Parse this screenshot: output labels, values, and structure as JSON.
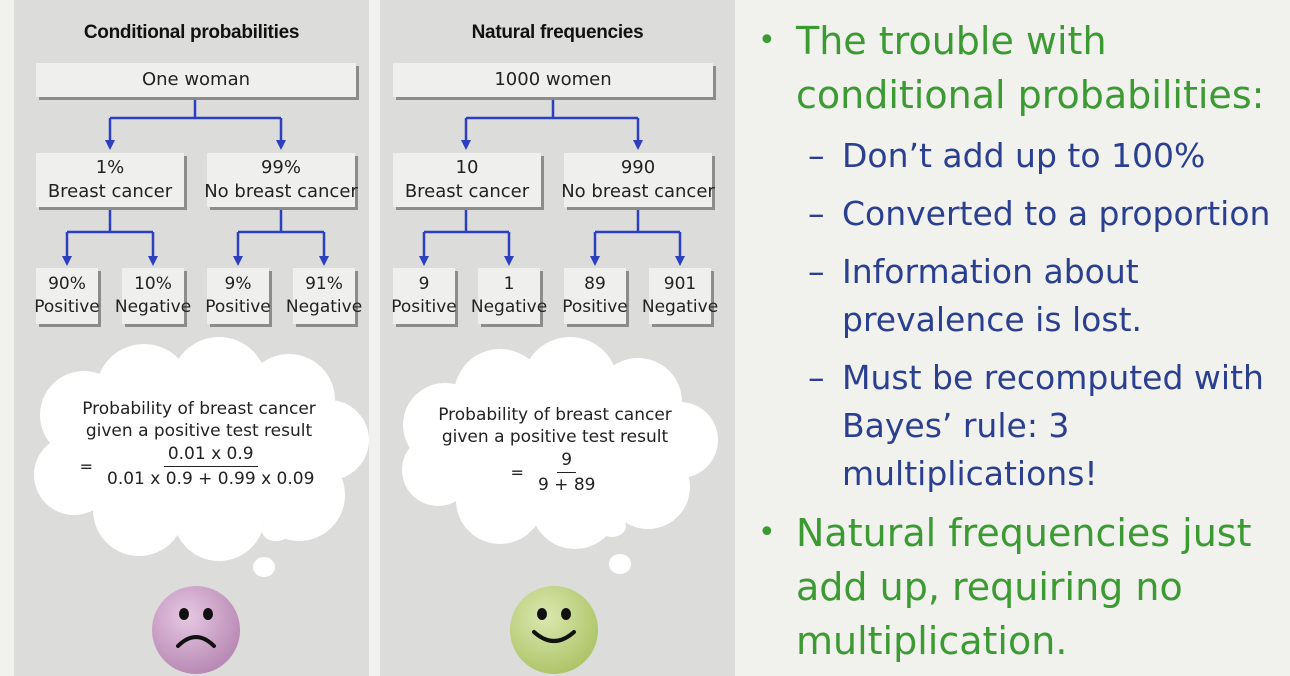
{
  "left_panel": {
    "title": "Conditional probabilities",
    "root": "One woman",
    "level1": [
      {
        "line1": "1%",
        "line2": "Breast cancer"
      },
      {
        "line1": "99%",
        "line2": "No breast cancer"
      }
    ],
    "level2": [
      {
        "line1": "90%",
        "line2": "Positive"
      },
      {
        "line1": "10%",
        "line2": "Negative"
      },
      {
        "line1": "9%",
        "line2": "Positive"
      },
      {
        "line1": "91%",
        "line2": "Negative"
      }
    ],
    "thought": {
      "text_line1": "Probability of breast cancer",
      "text_line2": "given a positive test result",
      "equals": "=",
      "numerator": "0.01 x 0.9",
      "denominator": "0.01 x 0.9 + 0.99 x 0.09"
    },
    "face": "sad-face-icon",
    "face_color": "#d0a6cc"
  },
  "right_panel": {
    "title": "Natural frequencies",
    "root": "1000 women",
    "level1": [
      {
        "line1": "10",
        "line2": "Breast cancer"
      },
      {
        "line1": "990",
        "line2": "No breast cancer"
      }
    ],
    "level2": [
      {
        "line1": "9",
        "line2": "Positive"
      },
      {
        "line1": "1",
        "line2": "Negative"
      },
      {
        "line1": "89",
        "line2": "Positive"
      },
      {
        "line1": "901",
        "line2": "Negative"
      }
    ],
    "thought": {
      "text_line1": "Probability of breast cancer",
      "text_line2": "given a positive test result",
      "equals": "=",
      "numerator": "9",
      "denominator": "9 + 89"
    },
    "face": "happy-face-icon",
    "face_color": "#c4d78a"
  },
  "bullets": {
    "main1": "The trouble with conditional probabilities:",
    "subs": [
      "Don’t add up to 100%",
      "Converted to a proportion",
      "Information about prevalence is lost.",
      "Must be recomputed with Bayes’ rule: 3 multiplications!"
    ],
    "main2": "Natural frequencies just add up, requiring no multiplication.",
    "bullet_glyph": "•",
    "dash_glyph": "–",
    "main_color": "#3c9a32",
    "sub_color": "#2a3f8f"
  },
  "connector_color": "#2b3fbf"
}
